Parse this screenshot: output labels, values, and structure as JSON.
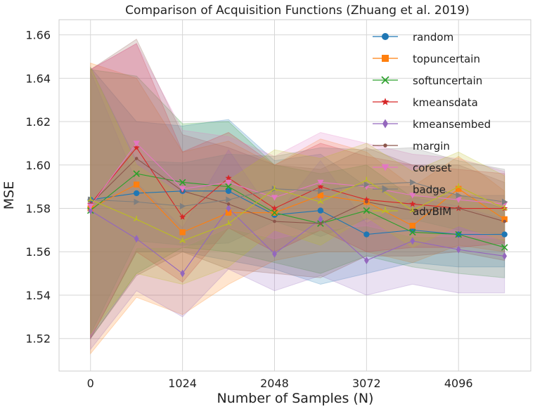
{
  "chart_data": {
    "type": "line",
    "title": "Comparison of Acquisition Functions (Zhuang et al. 2019)",
    "xlabel": "Number of Samples (N)",
    "ylabel": "MSE",
    "xlim": [
      -350,
      4900
    ],
    "ylim": [
      1.505,
      1.667
    ],
    "xticks": [
      0,
      1024,
      2048,
      3072,
      4096
    ],
    "xtick_labels": [
      "0",
      "1024",
      "2048",
      "3072",
      "4096"
    ],
    "yticks": [
      1.52,
      1.54,
      1.56,
      1.58,
      1.6,
      1.62,
      1.64,
      1.66
    ],
    "ytick_labels": [
      "1.52",
      "1.54",
      "1.56",
      "1.58",
      "1.60",
      "1.62",
      "1.64",
      "1.66"
    ],
    "grid": true,
    "legend_position": "top-right",
    "x": [
      0,
      512,
      1024,
      1536,
      2048,
      2560,
      3072,
      3584,
      4096,
      4608
    ],
    "series": [
      {
        "name": "random",
        "color": "#1f77b4",
        "marker": "circle",
        "values": [
          1.584,
          1.587,
          1.588,
          1.588,
          1.577,
          1.579,
          1.568,
          1.57,
          1.568,
          1.568
        ],
        "lower": [
          1.52,
          1.56,
          1.56,
          1.556,
          1.552,
          1.545,
          1.55,
          1.555,
          1.553,
          1.553
        ],
        "upper": [
          1.645,
          1.62,
          1.618,
          1.621,
          1.602,
          1.605,
          1.59,
          1.59,
          1.586,
          1.586
        ]
      },
      {
        "name": "topuncertain",
        "color": "#ff7f0e",
        "marker": "square",
        "values": [
          1.58,
          1.591,
          1.569,
          1.578,
          1.578,
          1.586,
          1.583,
          1.572,
          1.589,
          1.575
        ],
        "lower": [
          1.513,
          1.539,
          1.531,
          1.545,
          1.556,
          1.56,
          1.56,
          1.555,
          1.563,
          1.56
        ],
        "upper": [
          1.647,
          1.64,
          1.606,
          1.611,
          1.6,
          1.612,
          1.606,
          1.59,
          1.604,
          1.588
        ]
      },
      {
        "name": "softuncertain",
        "color": "#2ca02c",
        "marker": "x",
        "values": [
          1.579,
          1.596,
          1.592,
          1.59,
          1.578,
          1.573,
          1.579,
          1.569,
          1.568,
          1.562
        ],
        "lower": [
          1.52,
          1.55,
          1.562,
          1.56,
          1.555,
          1.55,
          1.558,
          1.553,
          1.55,
          1.548
        ],
        "upper": [
          1.644,
          1.641,
          1.619,
          1.62,
          1.6,
          1.596,
          1.6,
          1.585,
          1.586,
          1.58
        ]
      },
      {
        "name": "kmeansdata",
        "color": "#d62728",
        "marker": "star",
        "values": [
          1.582,
          1.608,
          1.576,
          1.594,
          1.58,
          1.59,
          1.584,
          1.582,
          1.58,
          1.58
        ],
        "lower": [
          1.52,
          1.56,
          1.546,
          1.571,
          1.56,
          1.57,
          1.56,
          1.562,
          1.562,
          1.564
        ],
        "upper": [
          1.644,
          1.656,
          1.606,
          1.615,
          1.6,
          1.61,
          1.604,
          1.6,
          1.598,
          1.596
        ]
      },
      {
        "name": "kmeansembed",
        "color": "#9467bd",
        "marker": "diamond",
        "values": [
          1.579,
          1.566,
          1.55,
          1.58,
          1.559,
          1.575,
          1.556,
          1.565,
          1.561,
          1.558
        ],
        "lower": [
          1.515,
          1.542,
          1.53,
          1.552,
          1.542,
          1.549,
          1.54,
          1.545,
          1.541,
          1.541
        ],
        "upper": [
          1.643,
          1.592,
          1.571,
          1.607,
          1.576,
          1.602,
          1.573,
          1.585,
          1.581,
          1.575
        ]
      },
      {
        "name": "margin",
        "color": "#8c564b",
        "marker": "dot",
        "values": [
          1.582,
          1.603,
          1.588,
          1.582,
          1.574,
          1.573,
          1.583,
          1.579,
          1.58,
          1.574
        ],
        "lower": [
          1.52,
          1.549,
          1.56,
          1.552,
          1.55,
          1.548,
          1.558,
          1.558,
          1.56,
          1.556
        ],
        "upper": [
          1.644,
          1.658,
          1.614,
          1.608,
          1.6,
          1.598,
          1.608,
          1.6,
          1.6,
          1.592
        ]
      },
      {
        "name": "coreset",
        "color": "#e377c2",
        "marker": "triangle-down",
        "values": [
          1.581,
          1.61,
          1.589,
          1.592,
          1.585,
          1.592,
          1.59,
          1.586,
          1.584,
          1.582
        ],
        "lower": [
          1.52,
          1.562,
          1.562,
          1.571,
          1.566,
          1.57,
          1.572,
          1.567,
          1.567,
          1.566
        ],
        "upper": [
          1.644,
          1.656,
          1.616,
          1.613,
          1.604,
          1.615,
          1.61,
          1.605,
          1.603,
          1.597
        ]
      },
      {
        "name": "badge",
        "color": "#7f7f7f",
        "marker": "triangle-right",
        "values": [
          1.584,
          1.583,
          1.581,
          1.584,
          1.589,
          1.588,
          1.591,
          1.592,
          1.586,
          1.583
        ],
        "lower": [
          1.522,
          1.565,
          1.563,
          1.564,
          1.574,
          1.567,
          1.575,
          1.575,
          1.57,
          1.568
        ],
        "upper": [
          1.645,
          1.602,
          1.601,
          1.605,
          1.604,
          1.608,
          1.607,
          1.608,
          1.602,
          1.598
        ]
      },
      {
        "name": "advBIM",
        "color": "#bcbd22",
        "marker": "tri",
        "values": [
          1.584,
          1.575,
          1.565,
          1.573,
          1.589,
          1.583,
          1.593,
          1.579,
          1.59,
          1.58
        ],
        "lower": [
          1.522,
          1.55,
          1.545,
          1.553,
          1.57,
          1.563,
          1.576,
          1.562,
          1.572,
          1.565
        ],
        "upper": [
          1.645,
          1.6,
          1.586,
          1.593,
          1.607,
          1.603,
          1.61,
          1.597,
          1.606,
          1.595
        ]
      }
    ]
  }
}
